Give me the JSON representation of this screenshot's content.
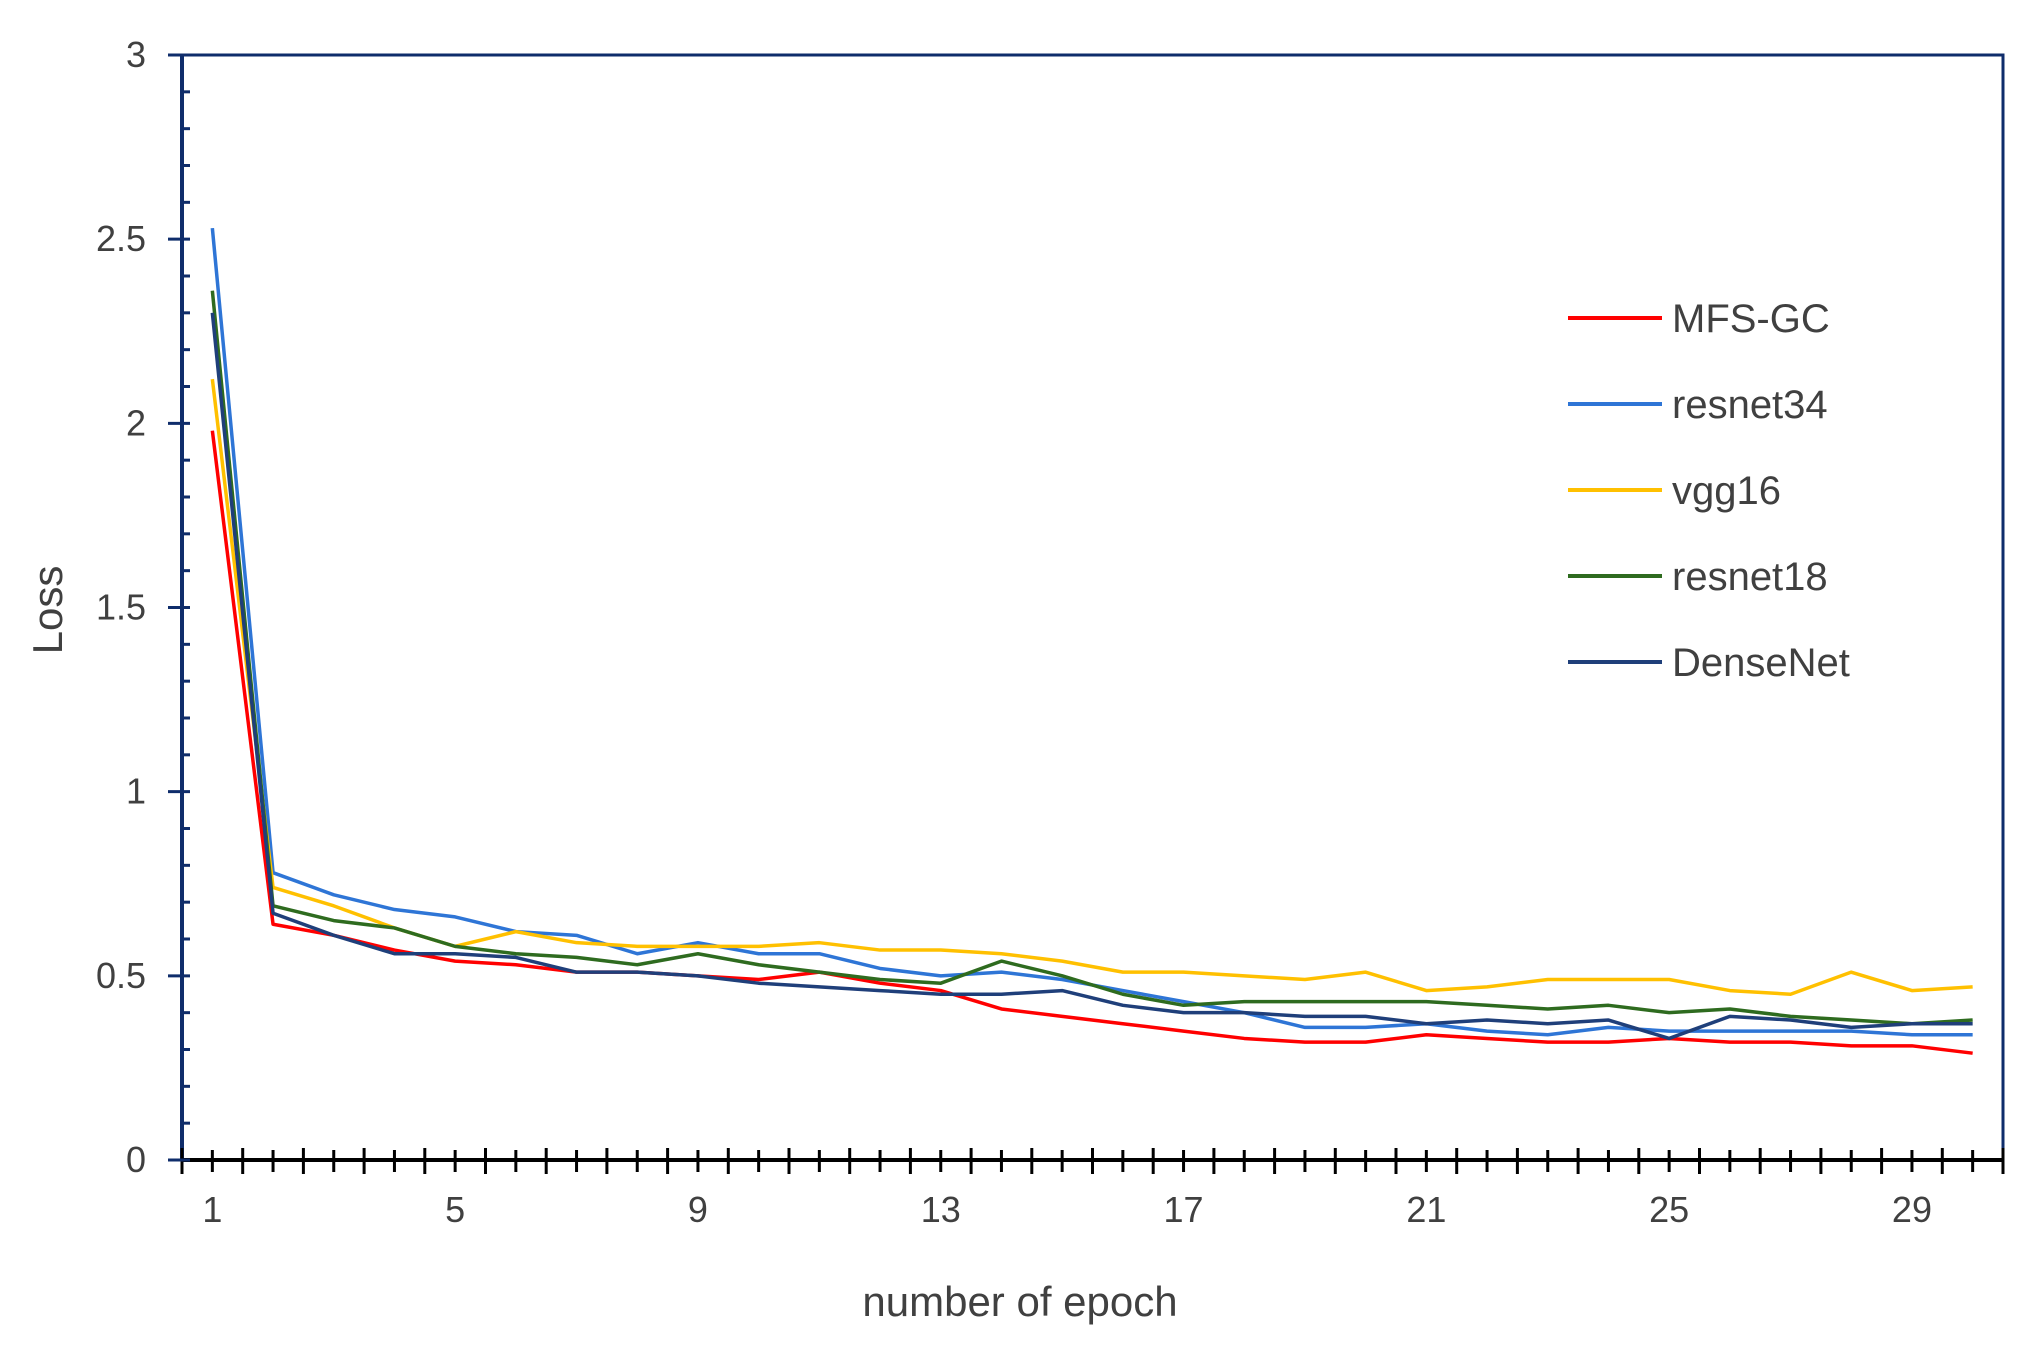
{
  "chart_data": {
    "type": "line",
    "title": "",
    "xlabel": "number of epoch",
    "ylabel": "Loss",
    "xlim": [
      0.5,
      30.5
    ],
    "ylim": [
      0,
      3
    ],
    "x_tick_labels": [
      "1",
      "5",
      "9",
      "13",
      "17",
      "21",
      "25",
      "29"
    ],
    "y_tick_labels": [
      "0",
      "0.5",
      "1",
      "1.5",
      "2",
      "2.5",
      "3"
    ],
    "grid": false,
    "legend_position": "right",
    "x": [
      1,
      2,
      3,
      4,
      5,
      6,
      7,
      8,
      9,
      10,
      11,
      12,
      13,
      14,
      15,
      16,
      17,
      18,
      19,
      20,
      21,
      22,
      23,
      24,
      25,
      26,
      27,
      28,
      29,
      30
    ],
    "series": [
      {
        "name": "MFS-GC",
        "color": "#FF0000",
        "values": [
          1.98,
          0.64,
          0.61,
          0.57,
          0.54,
          0.53,
          0.51,
          0.51,
          0.5,
          0.49,
          0.51,
          0.48,
          0.46,
          0.41,
          0.39,
          0.37,
          0.35,
          0.33,
          0.32,
          0.32,
          0.34,
          0.33,
          0.32,
          0.32,
          0.33,
          0.32,
          0.32,
          0.31,
          0.31,
          0.29
        ]
      },
      {
        "name": "resnet34",
        "color": "#2E75D6",
        "values": [
          2.53,
          0.78,
          0.72,
          0.68,
          0.66,
          0.62,
          0.61,
          0.56,
          0.59,
          0.56,
          0.56,
          0.52,
          0.5,
          0.51,
          0.49,
          0.46,
          0.43,
          0.4,
          0.36,
          0.36,
          0.37,
          0.35,
          0.34,
          0.36,
          0.35,
          0.35,
          0.35,
          0.35,
          0.34,
          0.34
        ]
      },
      {
        "name": "vgg16",
        "color": "#FFC000",
        "values": [
          2.12,
          0.74,
          0.69,
          0.63,
          0.58,
          0.62,
          0.59,
          0.58,
          0.58,
          0.58,
          0.59,
          0.57,
          0.57,
          0.56,
          0.54,
          0.51,
          0.51,
          0.5,
          0.49,
          0.51,
          0.46,
          0.47,
          0.49,
          0.49,
          0.49,
          0.46,
          0.45,
          0.51,
          0.46,
          0.47
        ]
      },
      {
        "name": "resnet18",
        "color": "#2E6B1F",
        "values": [
          2.36,
          0.69,
          0.65,
          0.63,
          0.58,
          0.56,
          0.55,
          0.53,
          0.56,
          0.53,
          0.51,
          0.49,
          0.48,
          0.54,
          0.5,
          0.45,
          0.42,
          0.43,
          0.43,
          0.43,
          0.43,
          0.42,
          0.41,
          0.42,
          0.4,
          0.41,
          0.39,
          0.38,
          0.37,
          0.38
        ]
      },
      {
        "name": "DenseNet",
        "color": "#1F3F7A",
        "values": [
          2.3,
          0.67,
          0.61,
          0.56,
          0.56,
          0.55,
          0.51,
          0.51,
          0.5,
          0.48,
          0.47,
          0.46,
          0.45,
          0.45,
          0.46,
          0.42,
          0.4,
          0.4,
          0.39,
          0.39,
          0.37,
          0.38,
          0.37,
          0.38,
          0.33,
          0.39,
          0.38,
          0.36,
          0.37,
          0.37
        ]
      }
    ]
  }
}
